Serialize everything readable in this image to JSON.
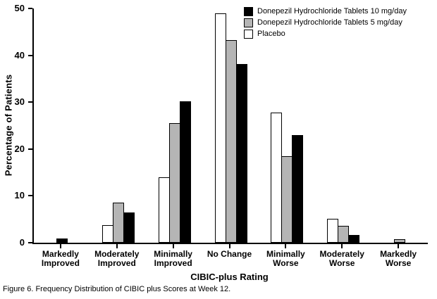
{
  "figure": {
    "caption": "Figure 6. Frequency Distribution of CIBIC plus Scores at Week 12."
  },
  "chart_data": {
    "type": "bar",
    "title": "",
    "xlabel": "CIBIC-plus Rating",
    "ylabel": "Percentage of Patients",
    "ylim": [
      0,
      50
    ],
    "yticks": [
      0,
      10,
      20,
      30,
      40,
      50
    ],
    "grid": false,
    "legend_position": "top-right",
    "categories": [
      "Markedly Improved",
      "Moderately Improved",
      "Minimally Improved",
      "No Change",
      "Minimally Worse",
      "Moderately Worse",
      "Markedly Worse"
    ],
    "series": [
      {
        "key": "placebo",
        "name": "Placebo",
        "color": "#ffffff",
        "values": [
          0,
          3.7,
          13.9,
          49.0,
          27.8,
          5.1,
          0
        ]
      },
      {
        "key": "donepezil-5mg",
        "name": "Donepezil Hydrochloride Tablets 5 mg/day",
        "color": "#b5b5b5",
        "values": [
          0,
          8.6,
          25.6,
          43.2,
          18.4,
          3.6,
          0.7
        ]
      },
      {
        "key": "donepezil-10mg",
        "name": "Donepezil Hydrochloride Tablets 10 mg/day",
        "color": "#000000",
        "values": [
          0.9,
          6.4,
          30.2,
          38.1,
          23.0,
          1.7,
          0
        ]
      }
    ],
    "legend": [
      {
        "label": "Donepezil Hydrochloride Tablets 10 mg/day",
        "color": "#000000"
      },
      {
        "label": "Donepezil Hydrochloride Tablets 5 mg/day",
        "color": "#b5b5b5"
      },
      {
        "label": "Placebo",
        "color": "#ffffff"
      }
    ]
  }
}
